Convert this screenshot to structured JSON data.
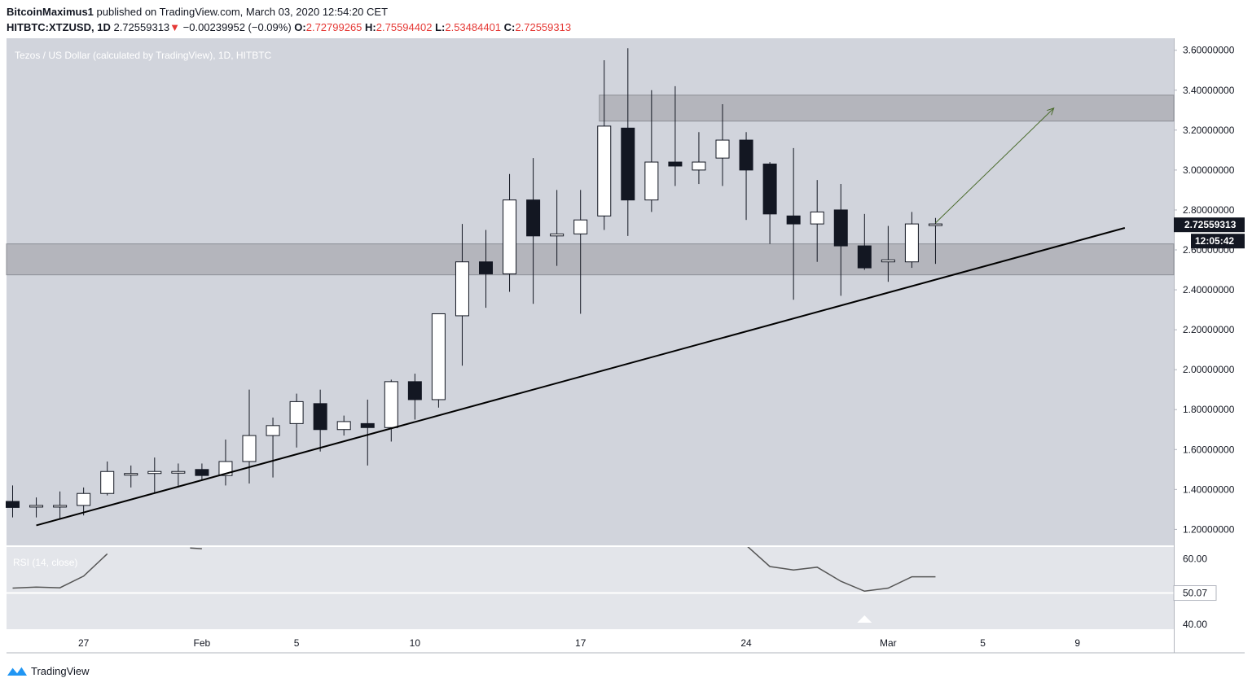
{
  "header": {
    "author": "BitcoinMaximus1",
    "published_text": "published on TradingView.com, March 03, 2020 12:54:20 CET",
    "symbol": "HITBTC:XTZUSD, 1D",
    "last": "2.72559313",
    "change_arrow": "▼",
    "change": "−0.00239952 (−0.09%)",
    "o_label": "O:",
    "o_value": "2.72799265",
    "h_label": "H:",
    "h_value": "2.75594402",
    "l_label": "L:",
    "l_value": "2.53484401",
    "c_label": "C:",
    "c_value": "2.72559313"
  },
  "footer": {
    "brand": "TradingView",
    "logo_icon": "tradingview-logo-icon"
  },
  "colors": {
    "panel_bg": "#d1d4dc",
    "rsi_bg": "#e3e5ea",
    "zone": "#a9abb2",
    "candle_up": "#ffffff",
    "candle_down": "#131722",
    "trendline": "#000000",
    "arrow": "#4a6b2c",
    "rsi_line": "#555555",
    "label_bg": "#131722"
  },
  "chart_data": {
    "type": "candlestick",
    "title": "Tezos / US Dollar (calculated by TradingView), 1D, HITBTC",
    "ylim": [
      1.12,
      3.66
    ],
    "y_ticks": [
      "3.60000000",
      "3.40000000",
      "3.20000000",
      "3.00000000",
      "2.80000000",
      "2.60000000",
      "2.40000000",
      "2.20000000",
      "2.00000000",
      "1.80000000",
      "1.60000000",
      "1.40000000",
      "1.20000000"
    ],
    "y_tick_values": [
      3.6,
      3.4,
      3.2,
      3.0,
      2.8,
      2.6,
      2.4,
      2.2,
      2.0,
      1.8,
      1.6,
      1.4,
      1.2
    ],
    "x_ticks": [
      {
        "label": "27",
        "day": 3
      },
      {
        "label": "Feb",
        "day": 8
      },
      {
        "label": "5",
        "day": 12
      },
      {
        "label": "10",
        "day": 17
      },
      {
        "label": "17",
        "day": 24
      },
      {
        "label": "24",
        "day": 31
      },
      {
        "label": "Mar",
        "day": 37
      },
      {
        "label": "5",
        "day": 41
      },
      {
        "label": "9",
        "day": 45
      }
    ],
    "candles": [
      {
        "o": 1.34,
        "h": 1.42,
        "l": 1.26,
        "c": 1.31
      },
      {
        "o": 1.32,
        "h": 1.36,
        "l": 1.26,
        "c": 1.32
      },
      {
        "o": 1.32,
        "h": 1.39,
        "l": 1.25,
        "c": 1.32
      },
      {
        "o": 1.32,
        "h": 1.41,
        "l": 1.27,
        "c": 1.38
      },
      {
        "o": 1.38,
        "h": 1.54,
        "l": 1.37,
        "c": 1.49
      },
      {
        "o": 1.48,
        "h": 1.52,
        "l": 1.41,
        "c": 1.48
      },
      {
        "o": 1.48,
        "h": 1.56,
        "l": 1.38,
        "c": 1.49
      },
      {
        "o": 1.49,
        "h": 1.53,
        "l": 1.41,
        "c": 1.49
      },
      {
        "o": 1.5,
        "h": 1.53,
        "l": 1.45,
        "c": 1.47
      },
      {
        "o": 1.47,
        "h": 1.65,
        "l": 1.42,
        "c": 1.54
      },
      {
        "o": 1.54,
        "h": 1.9,
        "l": 1.43,
        "c": 1.67
      },
      {
        "o": 1.67,
        "h": 1.76,
        "l": 1.46,
        "c": 1.72
      },
      {
        "o": 1.73,
        "h": 1.88,
        "l": 1.61,
        "c": 1.84
      },
      {
        "o": 1.83,
        "h": 1.9,
        "l": 1.59,
        "c": 1.7
      },
      {
        "o": 1.7,
        "h": 1.77,
        "l": 1.67,
        "c": 1.74
      },
      {
        "o": 1.73,
        "h": 1.85,
        "l": 1.52,
        "c": 1.71
      },
      {
        "o": 1.71,
        "h": 1.95,
        "l": 1.64,
        "c": 1.94
      },
      {
        "o": 1.94,
        "h": 1.98,
        "l": 1.75,
        "c": 1.85
      },
      {
        "o": 1.85,
        "h": 2.27,
        "l": 1.81,
        "c": 2.28
      },
      {
        "o": 2.27,
        "h": 2.73,
        "l": 2.02,
        "c": 2.54
      },
      {
        "o": 2.54,
        "h": 2.7,
        "l": 2.31,
        "c": 2.48
      },
      {
        "o": 2.48,
        "h": 2.98,
        "l": 2.39,
        "c": 2.85
      },
      {
        "o": 2.85,
        "h": 3.06,
        "l": 2.33,
        "c": 2.67
      },
      {
        "o": 2.67,
        "h": 2.9,
        "l": 2.52,
        "c": 2.68
      },
      {
        "o": 2.68,
        "h": 2.9,
        "l": 2.28,
        "c": 2.75
      },
      {
        "o": 2.77,
        "h": 3.55,
        "l": 2.7,
        "c": 3.22
      },
      {
        "o": 3.21,
        "h": 3.61,
        "l": 2.67,
        "c": 2.85
      },
      {
        "o": 2.85,
        "h": 3.4,
        "l": 2.79,
        "c": 3.04
      },
      {
        "o": 3.04,
        "h": 3.42,
        "l": 2.92,
        "c": 3.02
      },
      {
        "o": 3.0,
        "h": 3.19,
        "l": 2.93,
        "c": 3.04
      },
      {
        "o": 3.06,
        "h": 3.33,
        "l": 2.92,
        "c": 3.15
      },
      {
        "o": 3.15,
        "h": 3.19,
        "l": 2.75,
        "c": 3.0
      },
      {
        "o": 3.03,
        "h": 3.04,
        "l": 2.63,
        "c": 2.78
      },
      {
        "o": 2.77,
        "h": 3.11,
        "l": 2.35,
        "c": 2.73
      },
      {
        "o": 2.73,
        "h": 2.95,
        "l": 2.54,
        "c": 2.79
      },
      {
        "o": 2.8,
        "h": 2.93,
        "l": 2.37,
        "c": 2.62
      },
      {
        "o": 2.62,
        "h": 2.78,
        "l": 2.5,
        "c": 2.51
      },
      {
        "o": 2.54,
        "h": 2.72,
        "l": 2.44,
        "c": 2.55
      },
      {
        "o": 2.54,
        "h": 2.79,
        "l": 2.51,
        "c": 2.73
      },
      {
        "o": 2.73,
        "h": 2.76,
        "l": 2.53,
        "c": 2.73
      }
    ],
    "zones": [
      {
        "from": 3.245,
        "to": 3.375,
        "start_day": 25
      },
      {
        "from": 2.475,
        "to": 2.63,
        "start_day": 0
      }
    ],
    "trendline": {
      "x1": 1,
      "y1": 1.22,
      "x2": 47,
      "y2": 2.71
    },
    "arrow": {
      "x1": 39,
      "y1": 2.735,
      "x2": 44,
      "y2": 3.31
    },
    "price_label": "2.72559313",
    "price_label_value": 2.7256,
    "countdown_label": "12:05:42",
    "rsi": {
      "label": "RSI (14, close)",
      "ticks": [
        "60.00",
        "40.00"
      ],
      "tick_values": [
        60,
        40
      ],
      "current_label": "50.07",
      "current_value": 50.07,
      "ylim": [
        39.5,
        63.5
      ],
      "segments": [
        [
          [
            0,
            51.5
          ],
          [
            1,
            51.8
          ],
          [
            2,
            51.6
          ],
          [
            3,
            55.0
          ],
          [
            4,
            61.5
          ]
        ],
        [
          [
            7.5,
            63.2
          ],
          [
            8,
            63.0
          ]
        ],
        [
          [
            31,
            64.0
          ],
          [
            32,
            57.8
          ],
          [
            33,
            56.8
          ],
          [
            34,
            57.6
          ],
          [
            35,
            53.5
          ],
          [
            36,
            50.6
          ],
          [
            37,
            51.5
          ],
          [
            38,
            54.8
          ],
          [
            39,
            54.8
          ]
        ]
      ]
    }
  }
}
